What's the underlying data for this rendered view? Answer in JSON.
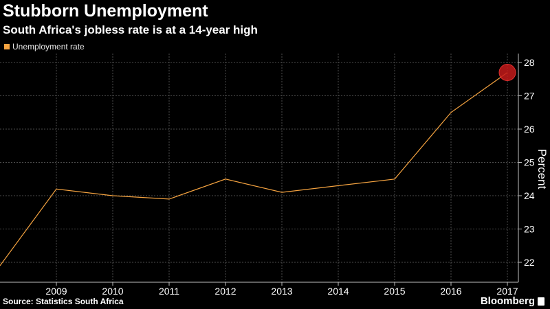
{
  "header": {
    "title": "Stubborn Unemployment",
    "subtitle": "South Africa's jobless rate is at a 14-year high"
  },
  "legend": {
    "label": "Unemployment rate",
    "color": "#f5a340"
  },
  "footer": {
    "source": "Source: Statistics South Africa",
    "brand": "Bloomberg",
    "brand_icon": "bloomberg-terminal-icon"
  },
  "colors": {
    "background": "#000000",
    "line": "#f5a340",
    "highlight": "#c41a1a",
    "grid": "#4d4d4d",
    "text": "#ffffff"
  },
  "chart_data": {
    "type": "line",
    "title": "Stubborn Unemployment",
    "subtitle": "South Africa's jobless rate is at a 14-year high",
    "xlabel": "",
    "ylabel": "Percent",
    "x_tick_labels": [
      "2009",
      "2010",
      "2011",
      "2012",
      "2013",
      "2014",
      "2015",
      "2016",
      "2017"
    ],
    "y_tick_labels": [
      "22",
      "23",
      "24",
      "25",
      "26",
      "27",
      "28"
    ],
    "xlim": [
      2008.0,
      2017.0
    ],
    "ylim": [
      21.5,
      28.2
    ],
    "grid": true,
    "y_axis_side": "right",
    "legend_position": "top-left",
    "series": [
      {
        "name": "Unemployment rate",
        "color": "#f5a340",
        "x": [
          2008.0,
          2009.0,
          2010.0,
          2011.0,
          2012.0,
          2013.0,
          2014.0,
          2015.0,
          2016.0,
          2017.0
        ],
        "y": [
          21.9,
          24.2,
          24.0,
          23.9,
          24.5,
          24.1,
          24.3,
          24.5,
          26.5,
          27.7
        ]
      }
    ],
    "highlight_point": {
      "x": 2017.0,
      "y": 27.7
    }
  }
}
